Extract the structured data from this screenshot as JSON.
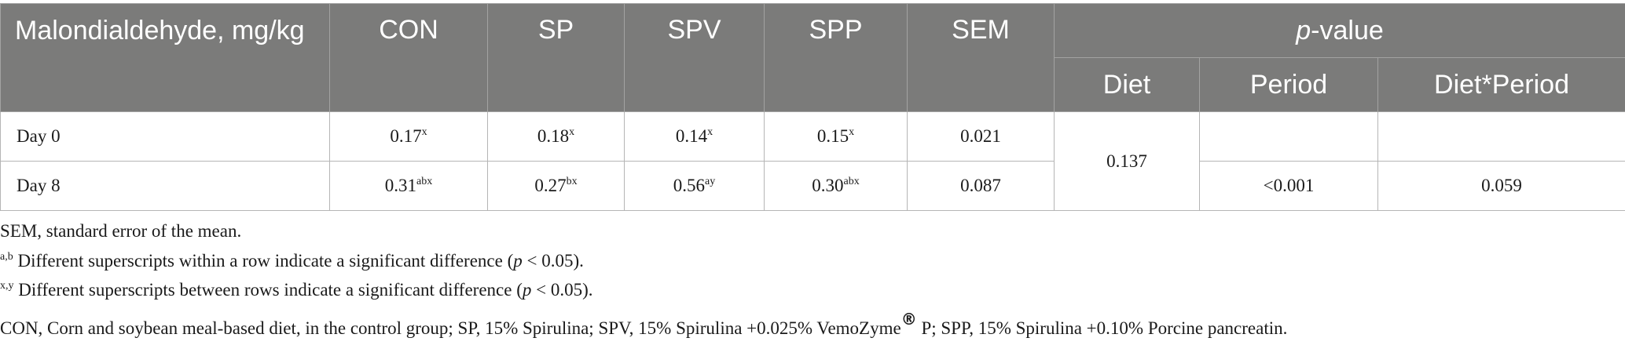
{
  "table": {
    "header": {
      "label": "Malondialdehyde, mg/kg",
      "groups": [
        "CON",
        "SP",
        "SPV",
        "SPP",
        "SEM"
      ],
      "pvalue": {
        "italic": "p",
        "text": "-value"
      },
      "subheaders": [
        "Diet",
        "Period",
        "Diet*Period"
      ]
    },
    "rows": [
      {
        "label": "Day 0",
        "values": [
          "0.17",
          "0.18",
          "0.14",
          "0.15"
        ],
        "sups": [
          "x",
          "x",
          "x",
          "x"
        ],
        "sem": "0.021"
      },
      {
        "label": "Day 8",
        "values": [
          "0.31",
          "0.27",
          "0.56",
          "0.30"
        ],
        "sups": [
          "abx",
          "bx",
          "ay",
          "abx"
        ],
        "sem": "0.087",
        "period": "<0.001",
        "interaction": "0.059"
      }
    ],
    "diet_p": "0.137"
  },
  "notes": [
    {
      "text": "SEM, standard error of the mean."
    },
    {
      "sup": "a,b",
      "text": " Different superscripts within a row indicate a significant difference (",
      "italic": "p",
      "rest": " < 0.05)."
    },
    {
      "sup": "x,y",
      "text": " Different superscripts between rows indicate a significant difference (",
      "italic": "p",
      "rest": " < 0.05)."
    },
    {
      "text": "CON, Corn and soybean meal-based diet, in the control group; SP, 15% Spirulina; SPV, 15% Spirulina +0.025% VemoZyme",
      "sup": "®",
      "rest": " P; SPP, 15% Spirulina +0.10% Porcine pancreatin."
    }
  ]
}
